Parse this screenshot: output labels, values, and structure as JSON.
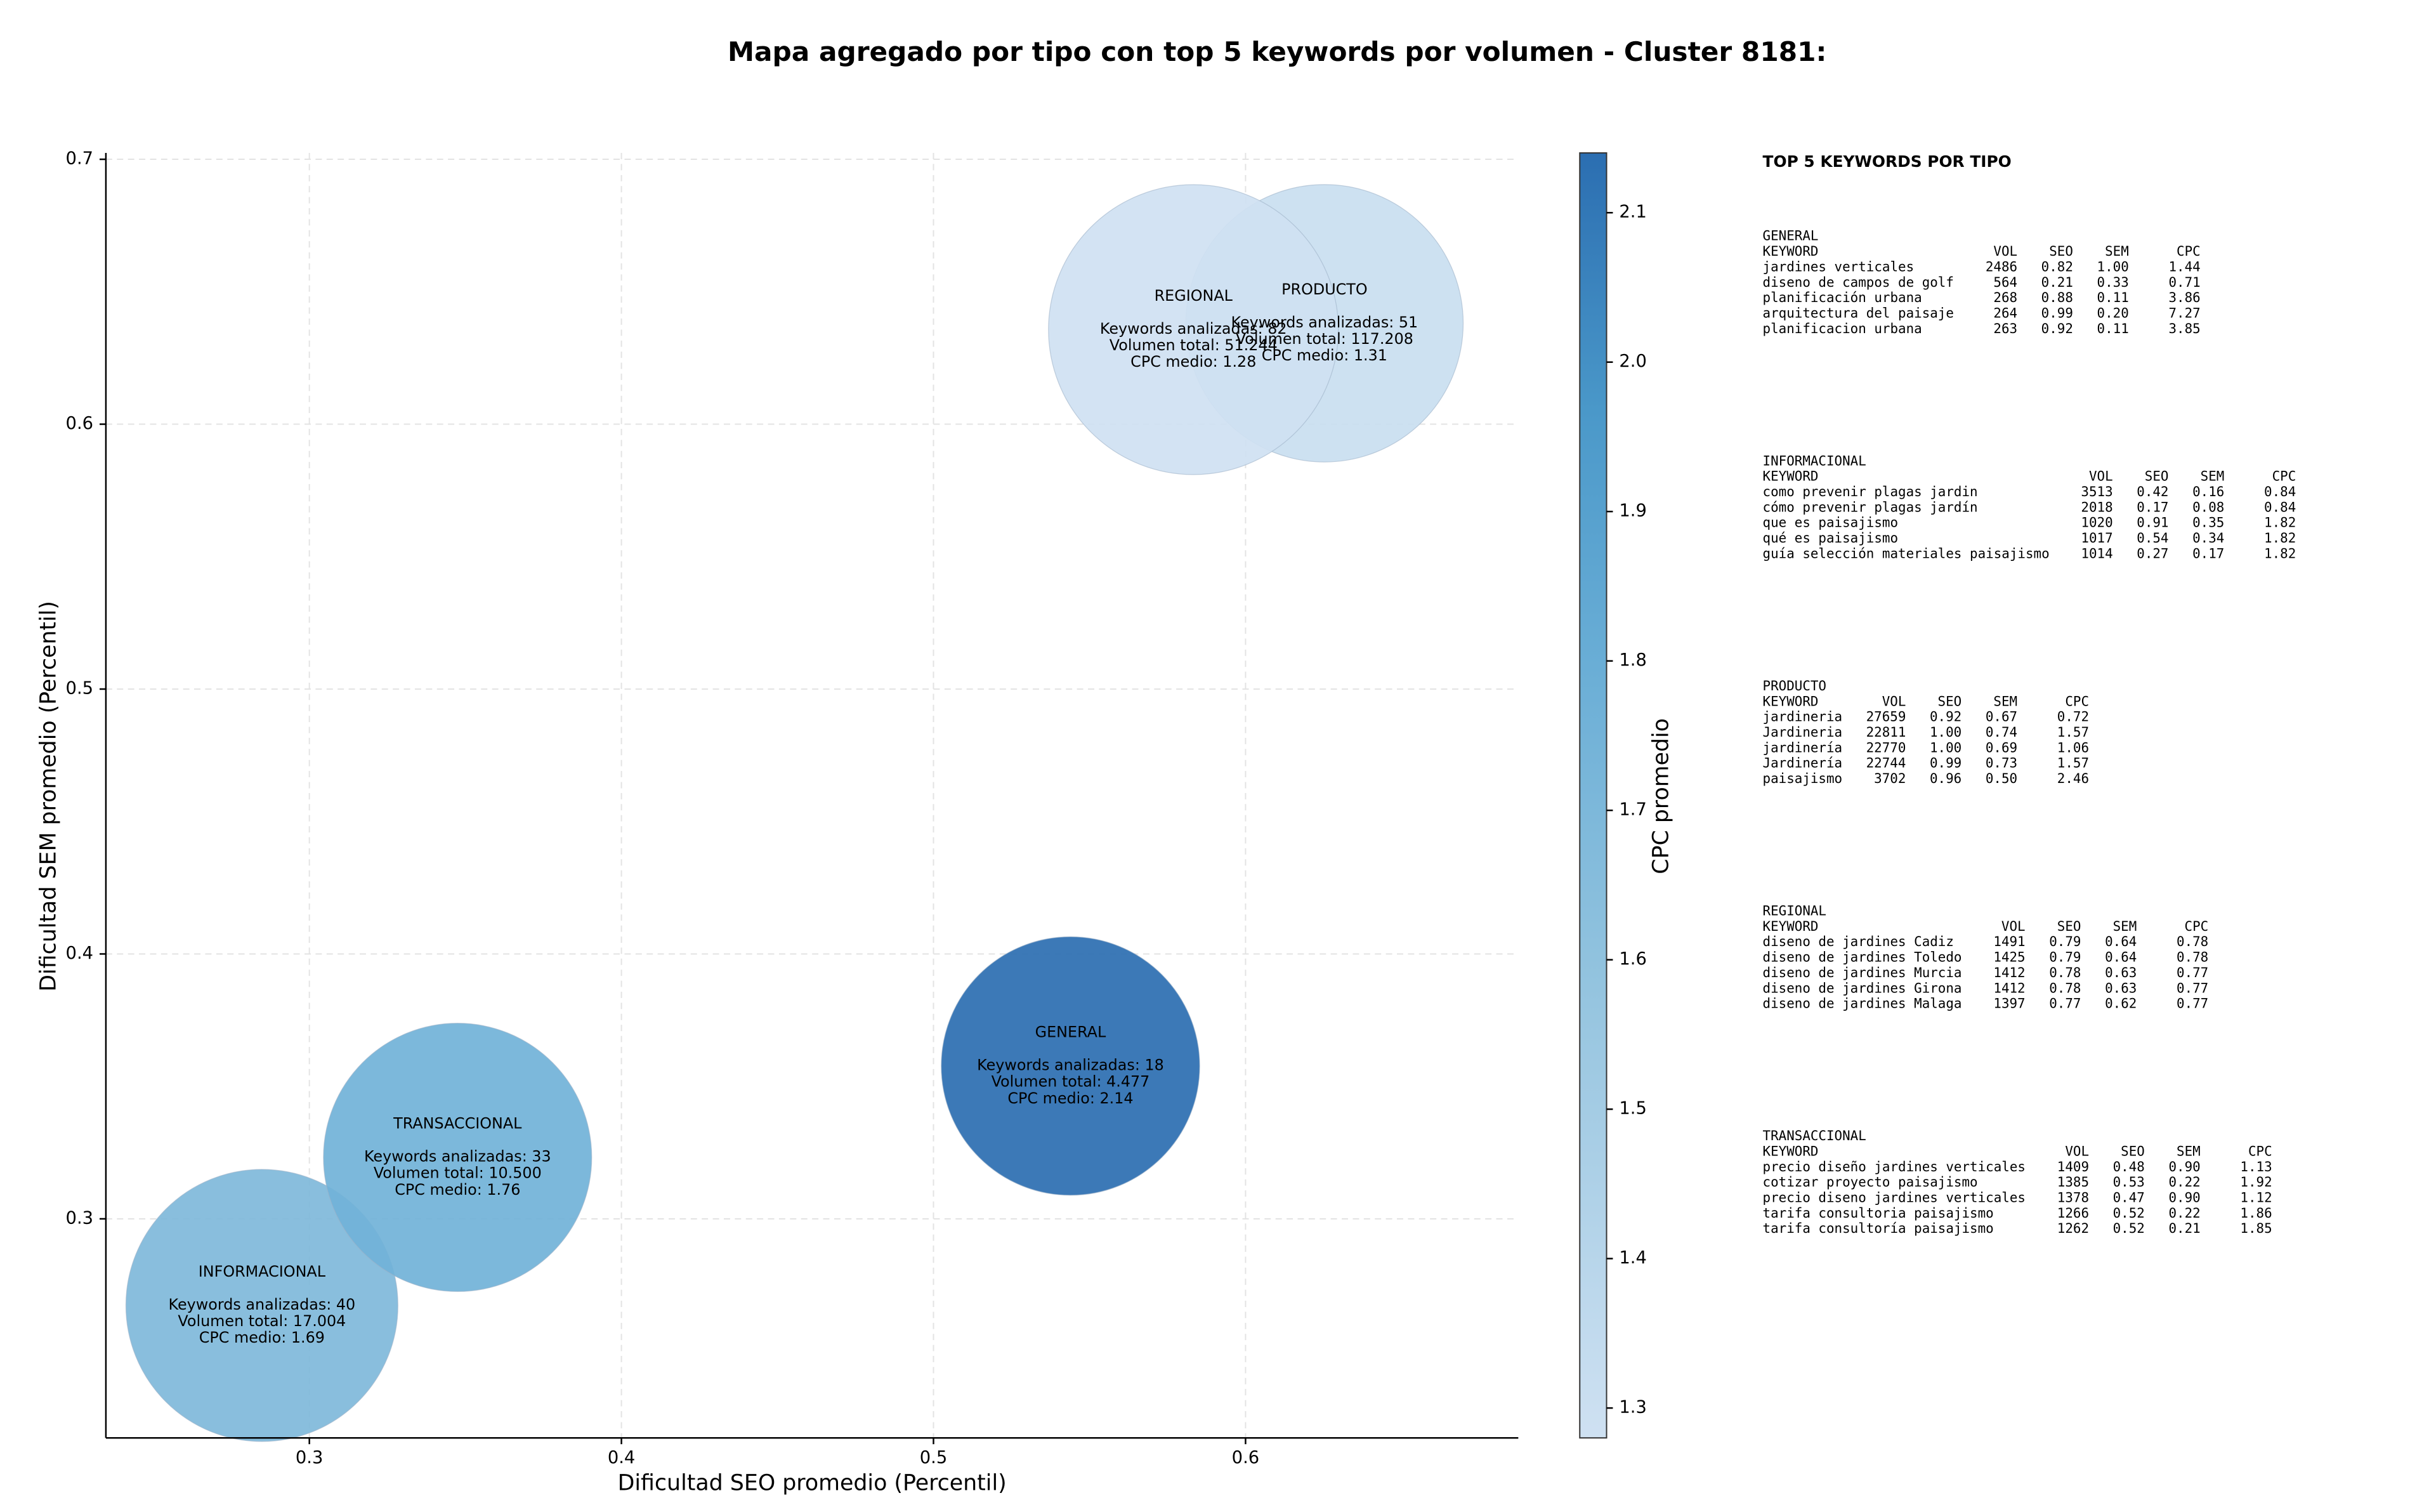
{
  "chart_data": {
    "type": "bubble",
    "title": "Mapa agregado por tipo con top 5 keywords por volumen - Cluster 8181:",
    "xlabel": "Dificultad SEO promedio (Percentil)",
    "ylabel": "Dificultad SEM promedio (Percentil)",
    "colorbar_label": "CPC promedio",
    "categories": [
      "GENERAL",
      "INFORMACIONAL",
      "PRODUCTO",
      "REGIONAL",
      "TRANSACCIONAL"
    ],
    "x": [
      0.5439,
      0.2848,
      0.6253,
      0.5833,
      0.3475
    ],
    "values": [
      0.3577,
      0.2673,
      0.6381,
      0.6357,
      0.3232
    ],
    "sizes": [
      18,
      40,
      51,
      82,
      33
    ],
    "cpc": [
      2.14,
      1.69,
      1.31,
      1.28,
      1.76
    ],
    "annotations": [
      [
        "Keywords analizadas: 18",
        "Volumen total: 4.477",
        "CPC medio: 2.14"
      ],
      [
        "Keywords analizadas: 40",
        "Volumen total: 17.004",
        "CPC medio: 1.69"
      ],
      [
        "Keywords analizadas: 51",
        "Volumen total: 117.208",
        "CPC medio: 1.31"
      ],
      [
        "Keywords analizadas: 82",
        "Volumen total: 51.244",
        "CPC medio: 1.28"
      ],
      [
        "Keywords analizadas: 33",
        "Volumen total: 10.500",
        "CPC medio: 1.76"
      ]
    ],
    "xlim": [
      0.2348,
      0.6874
    ],
    "ylim": [
      0.2173,
      0.7024
    ],
    "xticks": [
      0.3,
      0.4,
      0.5,
      0.6
    ],
    "yticks": [
      0.3,
      0.4,
      0.5,
      0.6,
      0.7
    ],
    "clim": [
      1.28,
      2.14
    ],
    "cticks": [
      1.3,
      1.4,
      1.5,
      1.6,
      1.7,
      1.8,
      1.9,
      {
        "value": 2,
        "label": "2.0"
      },
      2.1
    ],
    "grid": true,
    "colormap": "Blues"
  },
  "keyword_tables": {
    "title": "TOP 5 KEYWORDS POR TIPO",
    "header": [
      "KEYWORD",
      "VOL",
      "SEO",
      "SEM",
      "CPC"
    ],
    "groups": [
      {
        "name": "GENERAL",
        "rows": [
          [
            "jardines verticales",
            "2486",
            "0.82",
            "1.00",
            "1.44"
          ],
          [
            "diseno de campos de golf",
            "564",
            "0.21",
            "0.33",
            "0.71"
          ],
          [
            "planificación urbana",
            "268",
            "0.88",
            "0.11",
            "3.86"
          ],
          [
            "arquitectura del paisaje",
            "264",
            "0.99",
            "0.20",
            "7.27"
          ],
          [
            "planificacion urbana",
            "263",
            "0.92",
            "0.11",
            "3.85"
          ]
        ]
      },
      {
        "name": "INFORMACIONAL",
        "rows": [
          [
            "como prevenir plagas jardin",
            "3513",
            "0.42",
            "0.16",
            "0.84"
          ],
          [
            "cómo prevenir plagas jardín",
            "2018",
            "0.17",
            "0.08",
            "0.84"
          ],
          [
            "que es paisajismo",
            "1020",
            "0.91",
            "0.35",
            "1.82"
          ],
          [
            "qué es paisajismo",
            "1017",
            "0.54",
            "0.34",
            "1.82"
          ],
          [
            "guía selección materiales paisajismo",
            "1014",
            "0.27",
            "0.17",
            "1.82"
          ]
        ]
      },
      {
        "name": "PRODUCTO",
        "rows": [
          [
            "jardineria",
            "27659",
            "0.92",
            "0.67",
            "0.72"
          ],
          [
            "Jardineria",
            "22811",
            "1.00",
            "0.74",
            "1.57"
          ],
          [
            "jardinería",
            "22770",
            "1.00",
            "0.69",
            "1.06"
          ],
          [
            "Jardinería",
            "22744",
            "0.99",
            "0.73",
            "1.57"
          ],
          [
            "paisajismo",
            "3702",
            "0.96",
            "0.50",
            "2.46"
          ]
        ]
      },
      {
        "name": "REGIONAL",
        "rows": [
          [
            "diseno de jardines Cadiz",
            "1491",
            "0.79",
            "0.64",
            "0.78"
          ],
          [
            "diseno de jardines Toledo",
            "1425",
            "0.79",
            "0.64",
            "0.78"
          ],
          [
            "diseno de jardines Murcia",
            "1412",
            "0.78",
            "0.63",
            "0.77"
          ],
          [
            "diseno de jardines Girona",
            "1412",
            "0.78",
            "0.63",
            "0.77"
          ],
          [
            "diseno de jardines Malaga",
            "1397",
            "0.77",
            "0.62",
            "0.77"
          ]
        ]
      },
      {
        "name": "TRANSACCIONAL",
        "rows": [
          [
            "precio diseño jardines verticales",
            "1409",
            "0.48",
            "0.90",
            "1.13"
          ],
          [
            "cotizar proyecto paisajismo",
            "1385",
            "0.53",
            "0.22",
            "1.92"
          ],
          [
            "precio diseno jardines verticales",
            "1378",
            "0.47",
            "0.90",
            "1.12"
          ],
          [
            "tarifa consultoria paisajismo",
            "1266",
            "0.52",
            "0.22",
            "1.86"
          ],
          [
            "tarifa consultoría paisajismo",
            "1262",
            "0.52",
            "0.21",
            "1.85"
          ]
        ]
      }
    ]
  }
}
